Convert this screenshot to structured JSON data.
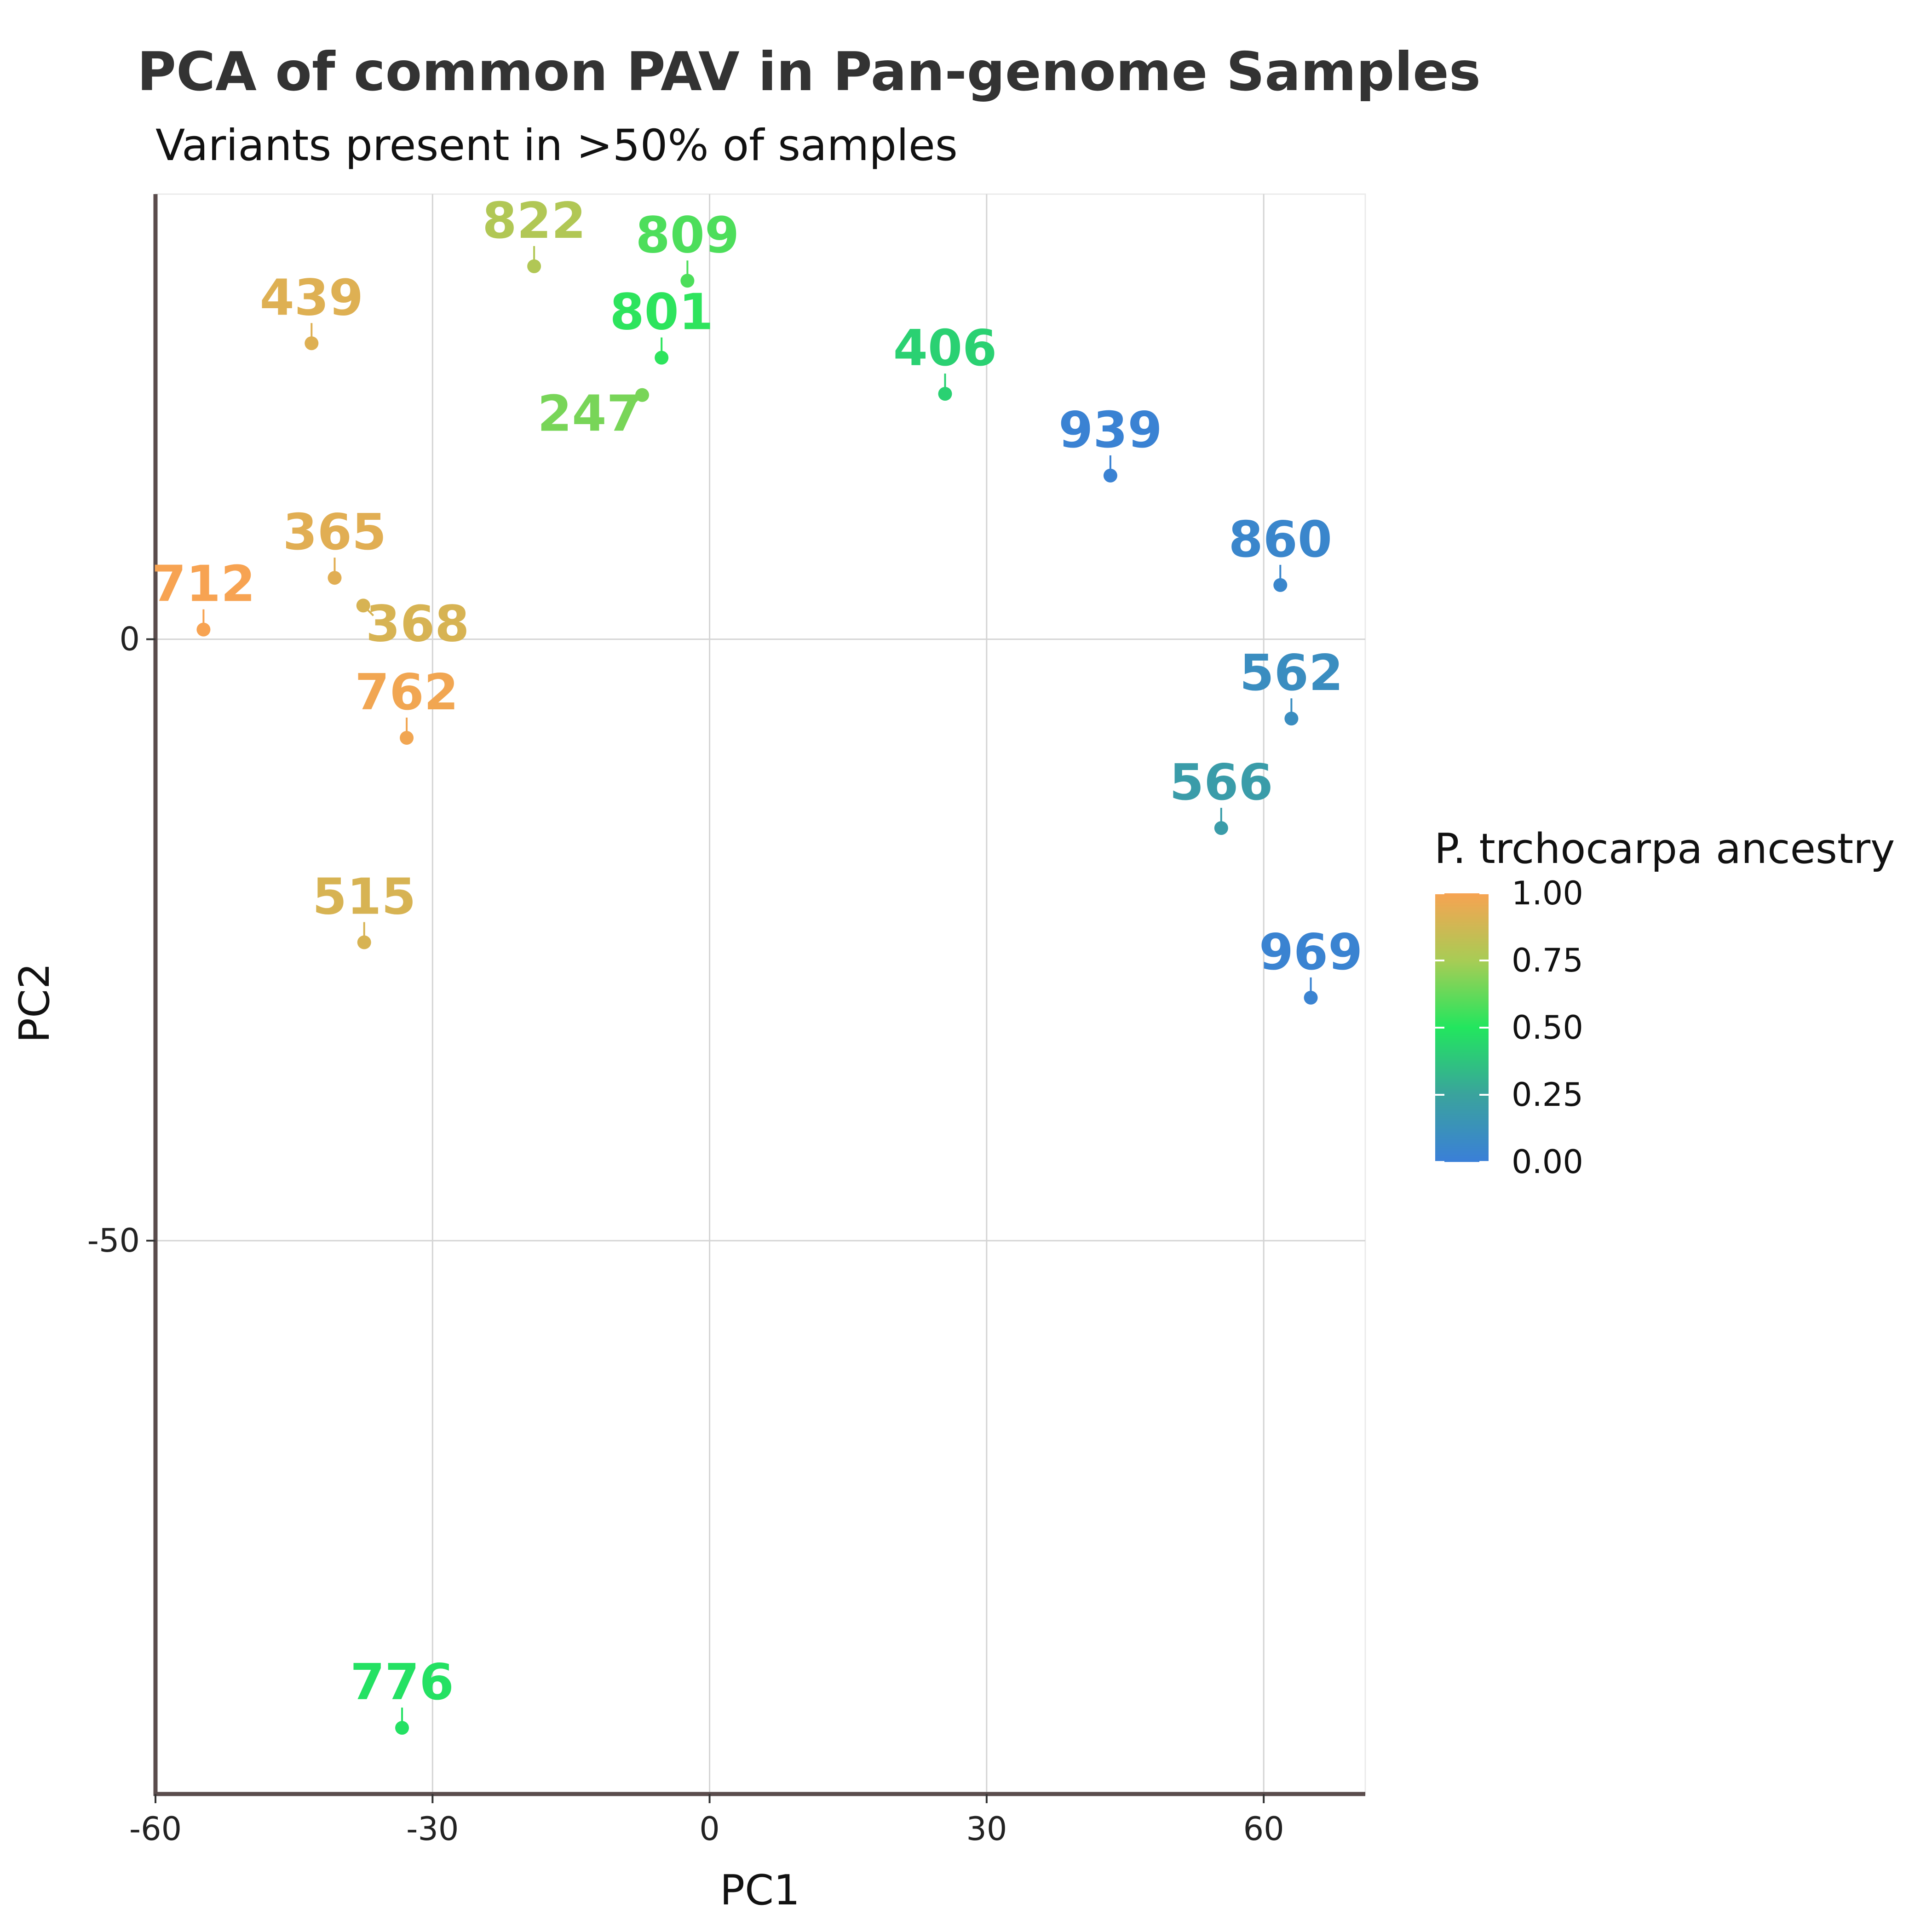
{
  "chart_data": {
    "type": "scatter",
    "title": "PCA of common PAV in Pan-genome Samples",
    "subtitle": "Variants present in >50% of samples",
    "xlabel": "PC1",
    "ylabel": "PC2",
    "xlim": [
      -60,
      71
    ],
    "ylim": [
      -96,
      37
    ],
    "xticks": [
      -60,
      -30,
      0,
      30,
      60
    ],
    "xtick_labels": [
      "-60",
      "-30",
      "0",
      "30",
      "60"
    ],
    "yticks": [
      0,
      -50
    ],
    "ytick_labels": [
      "0",
      "-50"
    ],
    "grid": true,
    "color_scale": {
      "title": "P. trchocarpa ancestry",
      "stops": [
        {
          "value": 0.0,
          "color": "#3a7fd8"
        },
        {
          "value": 0.25,
          "color": "#3aa39d"
        },
        {
          "value": 0.5,
          "color": "#22e65e"
        },
        {
          "value": 0.75,
          "color": "#a8cc55"
        },
        {
          "value": 1.0,
          "color": "#f7a352"
        }
      ],
      "ticks": [
        1.0,
        0.75,
        0.5,
        0.25,
        0.0
      ],
      "tick_labels": [
        "1.00",
        "0.75",
        "0.50",
        "0.25",
        "0.00"
      ],
      "legend_position": "right"
    },
    "points": [
      {
        "label": "822",
        "x": -19,
        "y": 31,
        "ancestry": 0.78,
        "label_pos": "above"
      },
      {
        "label": "809",
        "x": -2.4,
        "y": 29.8,
        "ancestry": 0.58,
        "label_pos": "above"
      },
      {
        "label": "439",
        "x": -43.1,
        "y": 24.6,
        "ancestry": 0.92,
        "label_pos": "above"
      },
      {
        "label": "801",
        "x": -5.2,
        "y": 23.4,
        "ancestry": 0.52,
        "label_pos": "above"
      },
      {
        "label": "247",
        "x": -7.3,
        "y": 20.3,
        "ancestry": 0.66,
        "label_pos": "below-left"
      },
      {
        "label": "406",
        "x": 25.5,
        "y": 20.4,
        "ancestry": 0.42,
        "label_pos": "above"
      },
      {
        "label": "939",
        "x": 43.4,
        "y": 13.6,
        "ancestry": 0.02,
        "label_pos": "above"
      },
      {
        "label": "365",
        "x": -40.6,
        "y": 5.1,
        "ancestry": 0.93,
        "label_pos": "above"
      },
      {
        "label": "860",
        "x": 61.8,
        "y": 4.5,
        "ancestry": 0.05,
        "label_pos": "above"
      },
      {
        "label": "368",
        "x": -37.5,
        "y": 2.8,
        "ancestry": 0.9,
        "label_pos": "below-right"
      },
      {
        "label": "712",
        "x": -54.8,
        "y": 0.8,
        "ancestry": 1.0,
        "label_pos": "above"
      },
      {
        "label": "762",
        "x": -32.8,
        "y": -8.2,
        "ancestry": 0.98,
        "label_pos": "above"
      },
      {
        "label": "562",
        "x": 63.0,
        "y": -6.6,
        "ancestry": 0.1,
        "label_pos": "above"
      },
      {
        "label": "566",
        "x": 55.4,
        "y": -15.7,
        "ancestry": 0.2,
        "label_pos": "above"
      },
      {
        "label": "515",
        "x": -37.4,
        "y": -25.2,
        "ancestry": 0.9,
        "label_pos": "above"
      },
      {
        "label": "969",
        "x": 65.1,
        "y": -29.8,
        "ancestry": 0.03,
        "label_pos": "above"
      },
      {
        "label": "776",
        "x": -33.3,
        "y": -90.5,
        "ancestry": 0.48,
        "label_pos": "above"
      }
    ]
  }
}
